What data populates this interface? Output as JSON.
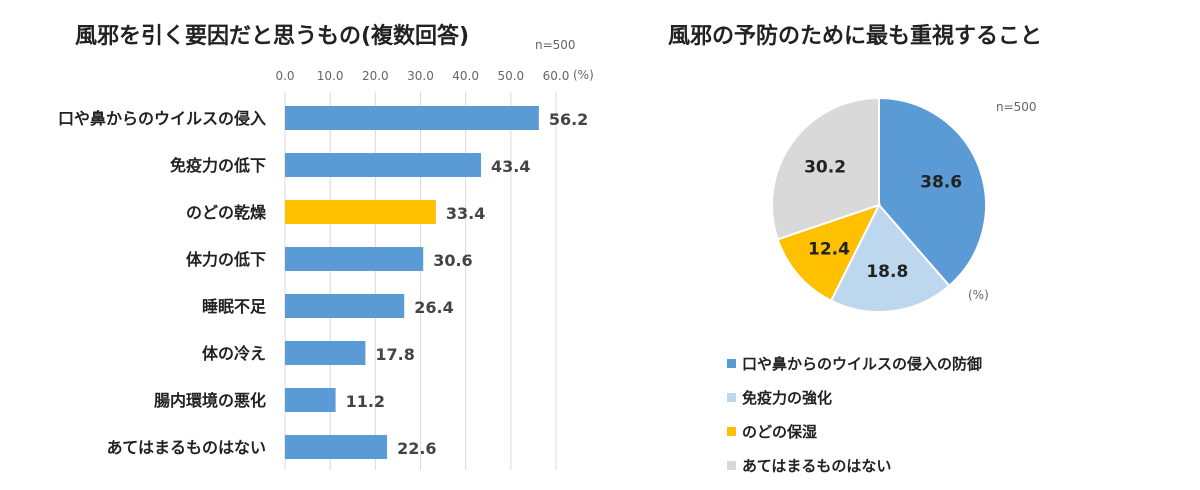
{
  "chart_data": [
    {
      "type": "bar",
      "orientation": "horizontal",
      "title": "風邪を引く要因だと思うもの(複数回答)",
      "n_label": "n=500",
      "unit_label": "(%)",
      "xlim": [
        0,
        60
      ],
      "ticks": [
        "0.0",
        "10.0",
        "20.0",
        "30.0",
        "40.0",
        "50.0",
        "60.0"
      ],
      "grid": true,
      "categories": [
        "口や鼻からのウイルスの侵入",
        "免疫力の低下",
        "のどの乾燥",
        "体力の低下",
        "睡眠不足",
        "体の冷え",
        "腸内環境の悪化",
        "あてはまるものはない"
      ],
      "values": [
        56.2,
        43.4,
        33.4,
        30.6,
        26.4,
        17.8,
        11.2,
        22.6
      ],
      "labels": [
        "56.2",
        "43.4",
        "33.4",
        "30.6",
        "26.4",
        "17.8",
        "11.2",
        "22.6"
      ],
      "colors": [
        "#5b9bd5",
        "#5b9bd5",
        "#ffc000",
        "#5b9bd5",
        "#5b9bd5",
        "#5b9bd5",
        "#5b9bd5",
        "#5b9bd5"
      ]
    },
    {
      "type": "pie",
      "title": "風邪の予防のために最も重視すること",
      "n_label": "n=500",
      "unit_label": "(%)",
      "categories": [
        "口や鼻からのウイルスの侵入の防御",
        "免疫力の強化",
        "のどの保湿",
        "あてはまるものはない"
      ],
      "values": [
        38.6,
        18.8,
        12.4,
        30.2
      ],
      "labels": [
        "38.6",
        "18.8",
        "12.4",
        "30.2"
      ],
      "colors": [
        "#5b9bd5",
        "#bdd7ee",
        "#ffc000",
        "#d9d9d9"
      ],
      "legend_position": "bottom"
    }
  ]
}
